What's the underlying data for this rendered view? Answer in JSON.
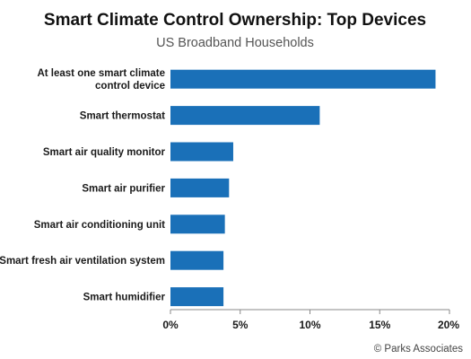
{
  "chart_data": {
    "type": "bar",
    "orientation": "horizontal",
    "title": "Smart Climate Control Ownership: Top Devices",
    "subtitle": "US Broadband Households",
    "categories": [
      [
        "At least one smart climate",
        "control device"
      ],
      [
        "Smart thermostat"
      ],
      [
        "Smart air quality monitor"
      ],
      [
        "Smart air purifier"
      ],
      [
        "Smart air conditioning unit"
      ],
      [
        "Smart fresh air ventilation system"
      ],
      [
        "Smart humidifier"
      ]
    ],
    "values": [
      19,
      10.7,
      4.5,
      4.2,
      3.9,
      3.8,
      3.8
    ],
    "value_unit": "%",
    "xlim": [
      0,
      20
    ],
    "x_ticks": [
      "0%",
      "5%",
      "10%",
      "15%",
      "20%"
    ],
    "xlabel": "",
    "ylabel": "",
    "grid": false,
    "legend": "none",
    "colors": {
      "bar": "#1a70b8"
    }
  },
  "credit": "© Parks Associates"
}
